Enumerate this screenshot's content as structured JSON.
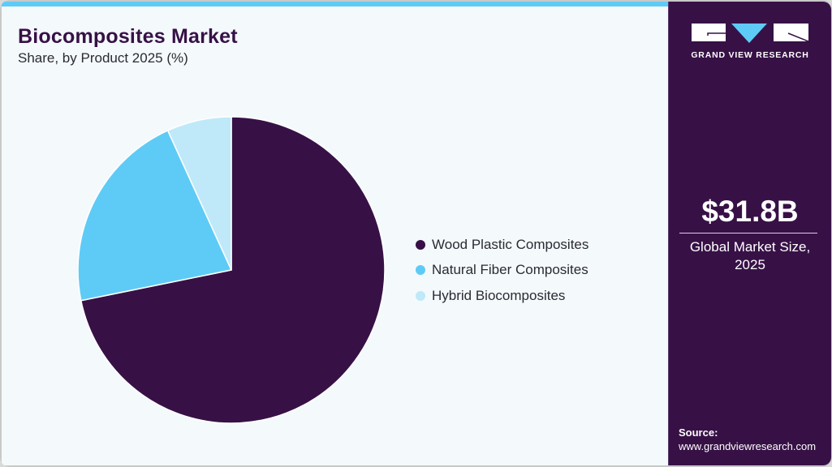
{
  "header": {
    "title": "Biocomposites Market",
    "subtitle": "Share, by Product 2025 (%)"
  },
  "colors": {
    "accent": "#5ecbf6",
    "brand_dark": "#371146",
    "light_blue": "#bfe9f9",
    "background": "#f4f9fc"
  },
  "legend": {
    "items": [
      {
        "label": "Wood Plastic Composites",
        "color": "#371146"
      },
      {
        "label": "Natural Fiber Composites",
        "color": "#5ecbf6"
      },
      {
        "label": "Hybrid Biocomposites",
        "color": "#bfe9f9"
      }
    ]
  },
  "sidebar": {
    "logo_text": "GRAND VIEW RESEARCH",
    "market_size": "$31.8B",
    "market_label_line1": "Global Market Size,",
    "market_label_line2": "2025",
    "source_label": "Source:",
    "source_url": "www.grandviewresearch.com"
  },
  "chart_data": {
    "type": "pie",
    "title": "Biocomposites Market",
    "subtitle": "Share, by Product 2025 (%)",
    "categories": [
      "Wood Plastic Composites",
      "Natural Fiber Composites",
      "Hybrid Biocomposites"
    ],
    "values": [
      71.8,
      21.4,
      6.8
    ],
    "colors": [
      "#371146",
      "#5ecbf6",
      "#bfe9f9"
    ],
    "start_angle": "12 o'clock, clockwise",
    "legend_position": "right"
  }
}
